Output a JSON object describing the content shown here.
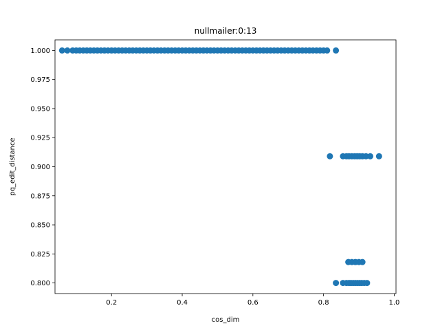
{
  "chart_data": {
    "type": "scatter",
    "title": "nullmailer:0:13",
    "xlabel": "cos_dim",
    "ylabel": "pq_edit_distance",
    "xlim": [
      0.04,
      1.005
    ],
    "ylim": [
      0.7909,
      1.0091
    ],
    "xticks": [
      "0.2",
      "0.4",
      "0.6",
      "0.8",
      "1.0"
    ],
    "yticks": [
      "0.800",
      "0.825",
      "0.850",
      "0.875",
      "0.900",
      "0.925",
      "0.950",
      "0.975",
      "1.000"
    ],
    "grid": false,
    "color": "#1f77b4",
    "series": [
      {
        "name": "",
        "x": [
          0.06,
          0.075,
          0.09,
          0.1,
          0.11,
          0.12,
          0.13,
          0.14,
          0.15,
          0.16,
          0.17,
          0.18,
          0.19,
          0.2,
          0.21,
          0.22,
          0.23,
          0.24,
          0.25,
          0.26,
          0.27,
          0.28,
          0.29,
          0.3,
          0.31,
          0.32,
          0.33,
          0.34,
          0.35,
          0.36,
          0.37,
          0.38,
          0.39,
          0.4,
          0.41,
          0.42,
          0.43,
          0.44,
          0.45,
          0.46,
          0.47,
          0.48,
          0.49,
          0.5,
          0.51,
          0.52,
          0.53,
          0.54,
          0.55,
          0.56,
          0.57,
          0.58,
          0.59,
          0.6,
          0.61,
          0.62,
          0.63,
          0.64,
          0.65,
          0.66,
          0.67,
          0.68,
          0.69,
          0.7,
          0.71,
          0.72,
          0.73,
          0.74,
          0.75,
          0.76,
          0.77,
          0.78,
          0.79,
          0.8,
          0.81,
          0.835,
          0.818,
          0.855,
          0.865,
          0.872,
          0.88,
          0.888,
          0.895,
          0.902,
          0.91,
          0.92,
          0.932,
          0.957,
          0.87,
          0.88,
          0.89,
          0.9,
          0.91,
          0.835,
          0.855,
          0.865,
          0.872,
          0.878,
          0.884,
          0.89,
          0.896,
          0.902,
          0.908,
          0.915,
          0.923
        ],
        "y": [
          1.0,
          1.0,
          1.0,
          1.0,
          1.0,
          1.0,
          1.0,
          1.0,
          1.0,
          1.0,
          1.0,
          1.0,
          1.0,
          1.0,
          1.0,
          1.0,
          1.0,
          1.0,
          1.0,
          1.0,
          1.0,
          1.0,
          1.0,
          1.0,
          1.0,
          1.0,
          1.0,
          1.0,
          1.0,
          1.0,
          1.0,
          1.0,
          1.0,
          1.0,
          1.0,
          1.0,
          1.0,
          1.0,
          1.0,
          1.0,
          1.0,
          1.0,
          1.0,
          1.0,
          1.0,
          1.0,
          1.0,
          1.0,
          1.0,
          1.0,
          1.0,
          1.0,
          1.0,
          1.0,
          1.0,
          1.0,
          1.0,
          1.0,
          1.0,
          1.0,
          1.0,
          1.0,
          1.0,
          1.0,
          1.0,
          1.0,
          1.0,
          1.0,
          1.0,
          1.0,
          1.0,
          1.0,
          1.0,
          1.0,
          1.0,
          1.0,
          0.909,
          0.909,
          0.909,
          0.909,
          0.909,
          0.909,
          0.909,
          0.909,
          0.909,
          0.909,
          0.909,
          0.909,
          0.818,
          0.818,
          0.818,
          0.818,
          0.818,
          0.8,
          0.8,
          0.8,
          0.8,
          0.8,
          0.8,
          0.8,
          0.8,
          0.8,
          0.8,
          0.8,
          0.8
        ]
      }
    ]
  }
}
